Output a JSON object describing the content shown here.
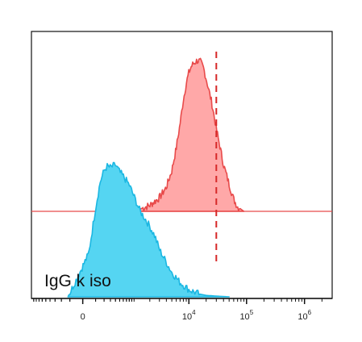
{
  "chart_data": {
    "type": "area",
    "title": "",
    "xlabel": "",
    "ylabel": "",
    "x_scale": "biexponential",
    "xlim": [
      -1000,
      3000000
    ],
    "x_tick_labels": [
      {
        "value": 0,
        "base": "0",
        "exp": ""
      },
      {
        "value": 10000,
        "base": "10",
        "exp": "4"
      },
      {
        "value": 100000,
        "base": "10",
        "exp": "5"
      },
      {
        "value": 1000000,
        "base": "10",
        "exp": "6"
      }
    ],
    "annotation": "IgG k iso",
    "reference_line": {
      "x": 30000,
      "style": "dashed",
      "color": "#d62828"
    },
    "grid": false,
    "legend": "none",
    "series": [
      {
        "fill_color": "#ffa8a8",
        "stroke_color": "#e84a4a",
        "baseline_color": "#e84a4a",
        "x": [
          500,
          1200,
          2000,
          3000,
          4000,
          5000,
          6000,
          7000,
          8000,
          9000,
          10000,
          11000,
          12000,
          14000,
          16000,
          18000,
          20000,
          25000,
          30000,
          35000,
          40000,
          50000,
          60000,
          70000,
          90000
        ],
        "y": [
          0,
          0.01,
          0.04,
          0.09,
          0.16,
          0.27,
          0.42,
          0.58,
          0.74,
          0.85,
          0.92,
          0.96,
          0.98,
          1.0,
          0.99,
          0.95,
          0.88,
          0.72,
          0.55,
          0.42,
          0.31,
          0.18,
          0.08,
          0.03,
          0
        ]
      },
      {
        "fill_color": "#55d5f2",
        "stroke_color": "#1bb7e2",
        "x": [
          -120,
          40,
          100,
          150,
          200,
          250,
          300,
          400,
          500,
          600,
          800,
          1000,
          1300,
          1600,
          2000,
          2500,
          3000,
          4000,
          5000,
          7000,
          10000,
          15000,
          20000,
          30000,
          50000
        ],
        "y": [
          0,
          0.3,
          0.62,
          0.8,
          0.88,
          0.91,
          0.9,
          0.92,
          0.87,
          0.84,
          0.78,
          0.7,
          0.6,
          0.55,
          0.49,
          0.42,
          0.33,
          0.24,
          0.17,
          0.1,
          0.05,
          0.02,
          0.01,
          0.005,
          0
        ]
      }
    ]
  }
}
